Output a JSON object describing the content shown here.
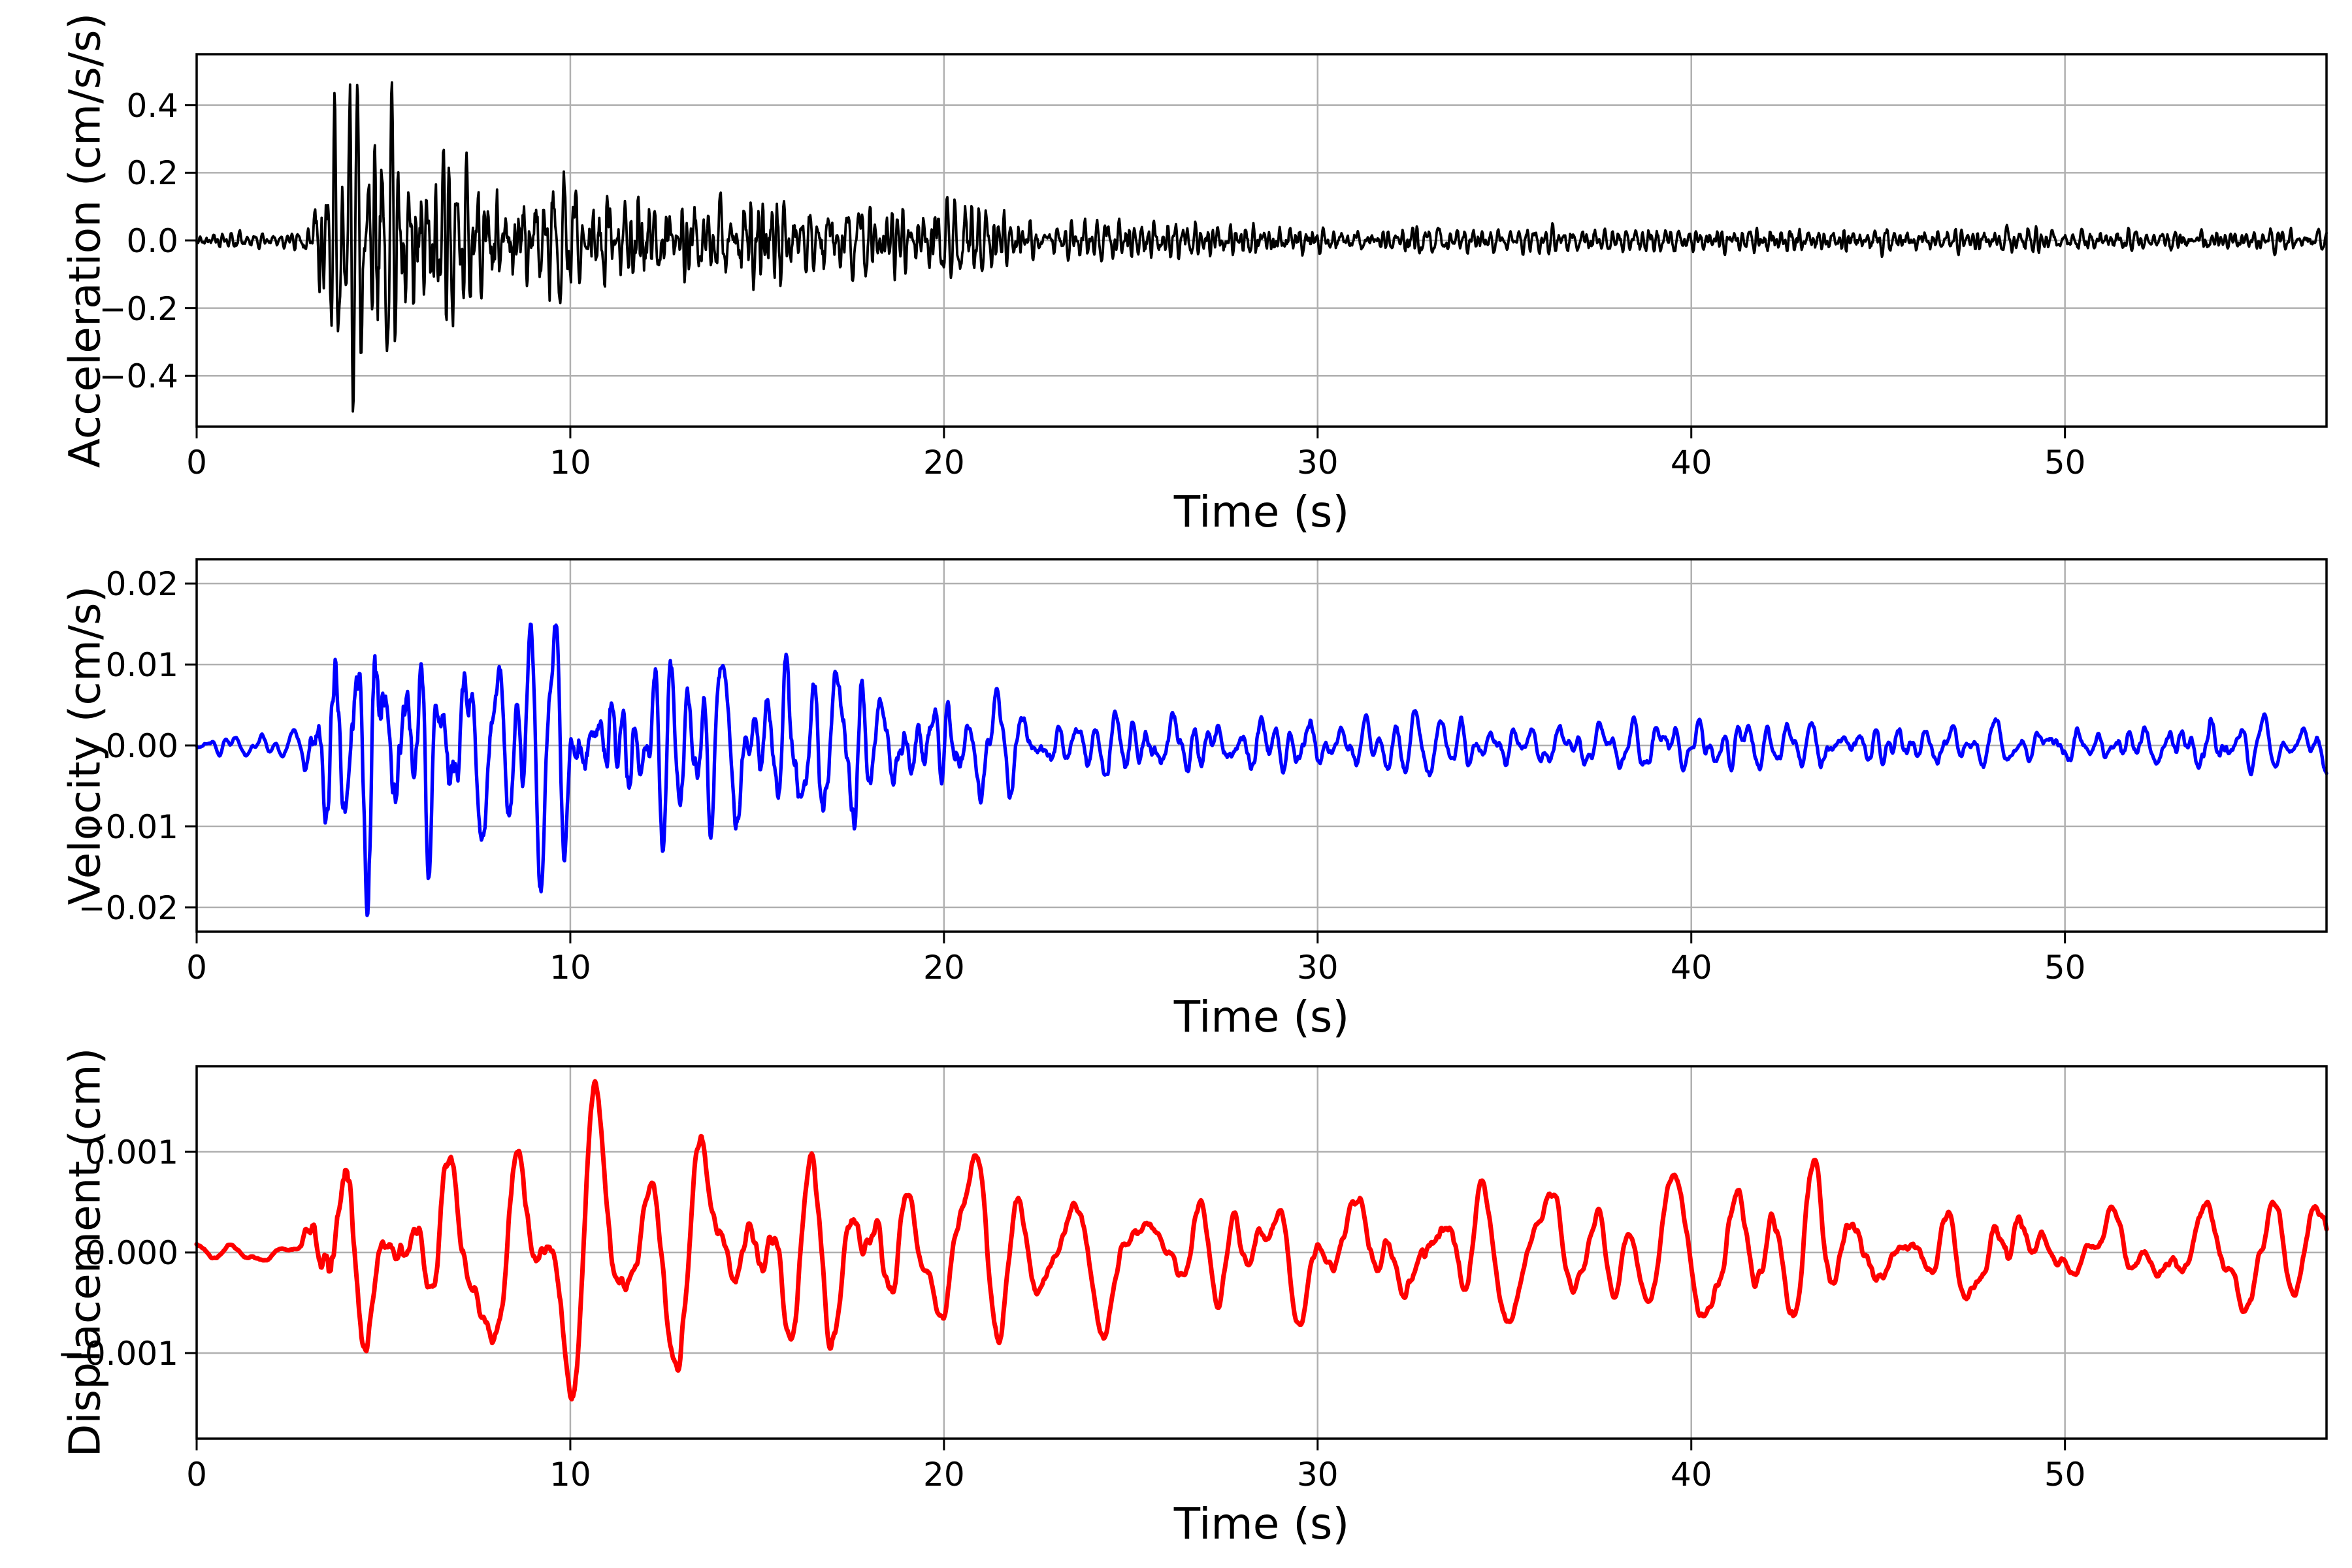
{
  "figure": {
    "background": "#ffffff",
    "axis_color": "#000000",
    "grid_color": "#b0b0b0",
    "tick_color": "#000000"
  },
  "chart_data": [
    {
      "type": "line",
      "title": "",
      "xlabel": "Time (s)",
      "ylabel": "Acceleration (cm/s/s)",
      "color": "#000000",
      "line_width": 3.8,
      "xlim": [
        0,
        57
      ],
      "ylim": [
        -0.55,
        0.55
      ],
      "xticks": [
        0,
        10,
        20,
        30,
        40,
        50
      ],
      "xtick_labels": [
        "0",
        "10",
        "20",
        "30",
        "40",
        "50"
      ],
      "yticks": [
        0.4,
        0.2,
        0.0,
        -0.2,
        -0.4
      ],
      "ytick_labels": [
        "0.4",
        "0.2",
        "0.0",
        "−0.2",
        "−0.4"
      ],
      "grid": true,
      "peak_max": 0.43,
      "peak_min": -0.505,
      "extreme": -0.505,
      "n_points": 3000,
      "seed": 42,
      "band": [
        3,
        11
      ],
      "envelope": [
        [
          0,
          0.06
        ],
        [
          2.6,
          0.065
        ],
        [
          3.0,
          0.25
        ],
        [
          3.4,
          0.55
        ],
        [
          3.9,
          0.9
        ],
        [
          4.4,
          1.0
        ],
        [
          5.0,
          0.95
        ],
        [
          5.7,
          0.8
        ],
        [
          6.4,
          0.65
        ],
        [
          7.2,
          0.55
        ],
        [
          8.0,
          0.48
        ],
        [
          8.8,
          0.42
        ],
        [
          9.6,
          0.5
        ],
        [
          10.4,
          0.46
        ],
        [
          11.2,
          0.42
        ],
        [
          12.0,
          0.4
        ],
        [
          12.8,
          0.35
        ],
        [
          13.6,
          0.32
        ],
        [
          14.4,
          0.3
        ],
        [
          15.2,
          0.33
        ],
        [
          16.0,
          0.3
        ],
        [
          16.8,
          0.33
        ],
        [
          17.6,
          0.3
        ],
        [
          18.4,
          0.32
        ],
        [
          19.2,
          0.27
        ],
        [
          20.0,
          0.26
        ],
        [
          20.8,
          0.28
        ],
        [
          21.6,
          0.2
        ],
        [
          22.4,
          0.16
        ],
        [
          23.2,
          0.15
        ],
        [
          24,
          0.14
        ],
        [
          25,
          0.15
        ],
        [
          26,
          0.14
        ],
        [
          27,
          0.13
        ],
        [
          28,
          0.15
        ],
        [
          29,
          0.14
        ],
        [
          30,
          0.11
        ],
        [
          31,
          0.1
        ],
        [
          32,
          0.1
        ],
        [
          33,
          0.11
        ],
        [
          34,
          0.1
        ],
        [
          35,
          0.095
        ],
        [
          36,
          0.1
        ],
        [
          37,
          0.095
        ],
        [
          38,
          0.09
        ],
        [
          39,
          0.1
        ],
        [
          40,
          0.095
        ],
        [
          41,
          0.1
        ],
        [
          42,
          0.09
        ],
        [
          43,
          0.11
        ],
        [
          44,
          0.1
        ],
        [
          45,
          0.1
        ],
        [
          46,
          0.09
        ],
        [
          47,
          0.095
        ],
        [
          48,
          0.09
        ],
        [
          49,
          0.095
        ],
        [
          50,
          0.09
        ],
        [
          51,
          0.09
        ],
        [
          52,
          0.085
        ],
        [
          53,
          0.09
        ],
        [
          54,
          0.085
        ],
        [
          55,
          0.09
        ],
        [
          56,
          0.085
        ],
        [
          57,
          0.08
        ]
      ]
    },
    {
      "type": "line",
      "title": "",
      "xlabel": "Time (s)",
      "ylabel": "Velocity (cm/s)",
      "color": "#0000ff",
      "line_width": 5.3,
      "xlim": [
        0,
        57
      ],
      "ylim": [
        -0.023,
        0.023
      ],
      "xticks": [
        0,
        10,
        20,
        30,
        40,
        50
      ],
      "xtick_labels": [
        "0",
        "10",
        "20",
        "30",
        "40",
        "50"
      ],
      "yticks": [
        0.02,
        0.01,
        0.0,
        -0.01,
        -0.02
      ],
      "ytick_labels": [
        "0.02",
        "0.01",
        "0.00",
        "−0.01",
        "−0.02"
      ],
      "grid": true,
      "peak_max": 0.0185,
      "peak_min": -0.021,
      "extreme": -0.021,
      "n_points": 3000,
      "seed": 7,
      "band": [
        9,
        29
      ],
      "envelope": [
        [
          0,
          0.05
        ],
        [
          2.8,
          0.06
        ],
        [
          3.1,
          0.5
        ],
        [
          3.4,
          0.8
        ],
        [
          3.8,
          0.65
        ],
        [
          4.3,
          0.95
        ],
        [
          4.7,
          1.0
        ],
        [
          5.1,
          0.8
        ],
        [
          5.6,
          0.68
        ],
        [
          6.1,
          0.72
        ],
        [
          6.7,
          0.62
        ],
        [
          7.3,
          0.58
        ],
        [
          8.0,
          0.52
        ],
        [
          8.8,
          0.45
        ],
        [
          9.6,
          0.5
        ],
        [
          10.4,
          0.52
        ],
        [
          11.2,
          0.46
        ],
        [
          12.0,
          0.42
        ],
        [
          12.8,
          0.4
        ],
        [
          13.6,
          0.44
        ],
        [
          14.4,
          0.46
        ],
        [
          15.2,
          0.44
        ],
        [
          16.0,
          0.48
        ],
        [
          16.8,
          0.46
        ],
        [
          17.6,
          0.48
        ],
        [
          18.4,
          0.4
        ],
        [
          19.2,
          0.36
        ],
        [
          20.0,
          0.36
        ],
        [
          20.8,
          0.33
        ],
        [
          21.6,
          0.26
        ],
        [
          22.4,
          0.22
        ],
        [
          23.2,
          0.2
        ],
        [
          24,
          0.2
        ],
        [
          25,
          0.21
        ],
        [
          26,
          0.2
        ],
        [
          27,
          0.18
        ],
        [
          28,
          0.2
        ],
        [
          29,
          0.17
        ],
        [
          30,
          0.16
        ],
        [
          31,
          0.15
        ],
        [
          32,
          0.14
        ],
        [
          33,
          0.16
        ],
        [
          34,
          0.15
        ],
        [
          35,
          0.14
        ],
        [
          36,
          0.13
        ],
        [
          37,
          0.15
        ],
        [
          38,
          0.14
        ],
        [
          39,
          0.15
        ],
        [
          40,
          0.14
        ],
        [
          41,
          0.15
        ],
        [
          42,
          0.14
        ],
        [
          43,
          0.16
        ],
        [
          44,
          0.15
        ],
        [
          45,
          0.14
        ],
        [
          46,
          0.13
        ],
        [
          47,
          0.14
        ],
        [
          48,
          0.13
        ],
        [
          49,
          0.14
        ],
        [
          50,
          0.13
        ],
        [
          51,
          0.14
        ],
        [
          52,
          0.13
        ],
        [
          53,
          0.13
        ],
        [
          54,
          0.14
        ],
        [
          55,
          0.13
        ],
        [
          56,
          0.13
        ],
        [
          57,
          0.12
        ]
      ]
    },
    {
      "type": "line",
      "title": "",
      "xlabel": "Time (s)",
      "ylabel": "Displacement (cm)",
      "color": "#ff0000",
      "line_width": 7,
      "xlim": [
        0,
        57
      ],
      "ylim": [
        -0.00185,
        0.00185
      ],
      "xticks": [
        0,
        10,
        20,
        30,
        40,
        50
      ],
      "xtick_labels": [
        "0",
        "10",
        "20",
        "30",
        "40",
        "50"
      ],
      "yticks": [
        0.001,
        0.0,
        -0.001
      ],
      "ytick_labels": [
        "0.001",
        "0.000",
        "−0.001"
      ],
      "grid": true,
      "peak_max": 0.0017,
      "peak_min": -0.00116,
      "extreme": 0.0017,
      "n_points": 3000,
      "seed": 1234,
      "band": [
        23,
        75
      ],
      "envelope": [
        [
          0,
          0.06
        ],
        [
          2.8,
          0.07
        ],
        [
          3.05,
          0.45
        ],
        [
          3.3,
          0.78
        ],
        [
          3.55,
          1.0
        ],
        [
          3.9,
          0.85
        ],
        [
          4.3,
          0.6
        ],
        [
          4.8,
          0.5
        ],
        [
          5.3,
          0.55
        ],
        [
          6.0,
          0.5
        ],
        [
          6.8,
          0.55
        ],
        [
          7.6,
          0.6
        ],
        [
          8.4,
          0.45
        ],
        [
          9.2,
          0.35
        ],
        [
          10,
          0.5
        ],
        [
          10.8,
          0.55
        ],
        [
          11.6,
          0.4
        ],
        [
          12.5,
          0.35
        ],
        [
          13.3,
          0.45
        ],
        [
          14.2,
          0.5
        ],
        [
          15,
          0.4
        ],
        [
          16,
          0.35
        ],
        [
          17,
          0.5
        ],
        [
          17.8,
          0.55
        ],
        [
          18.6,
          0.4
        ],
        [
          19.5,
          0.3
        ],
        [
          20.5,
          0.35
        ],
        [
          21.5,
          0.4
        ],
        [
          22.5,
          0.3
        ],
        [
          23.5,
          0.28
        ],
        [
          24.5,
          0.35
        ],
        [
          25.5,
          0.3
        ],
        [
          26.5,
          0.25
        ],
        [
          27.5,
          0.25
        ],
        [
          28.5,
          0.3
        ],
        [
          29.5,
          0.25
        ],
        [
          30.5,
          0.3
        ],
        [
          31.5,
          0.28
        ],
        [
          32.5,
          0.35
        ],
        [
          33.5,
          0.42
        ],
        [
          34.5,
          0.3
        ],
        [
          35.5,
          0.25
        ],
        [
          36.5,
          0.28
        ],
        [
          37.5,
          0.3
        ],
        [
          38.5,
          0.25
        ],
        [
          39.5,
          0.28
        ],
        [
          40.5,
          0.3
        ],
        [
          41.5,
          0.35
        ],
        [
          42.5,
          0.3
        ],
        [
          43.5,
          0.4
        ],
        [
          44.5,
          0.32
        ],
        [
          45.5,
          0.25
        ],
        [
          46.5,
          0.3
        ],
        [
          47.5,
          0.35
        ],
        [
          48.5,
          0.4
        ],
        [
          49.5,
          0.28
        ],
        [
          50.5,
          0.25
        ],
        [
          51.5,
          0.3
        ],
        [
          52.5,
          0.28
        ],
        [
          53.5,
          0.3
        ],
        [
          54.5,
          0.32
        ],
        [
          55.5,
          0.3
        ],
        [
          57,
          0.25
        ]
      ]
    }
  ]
}
